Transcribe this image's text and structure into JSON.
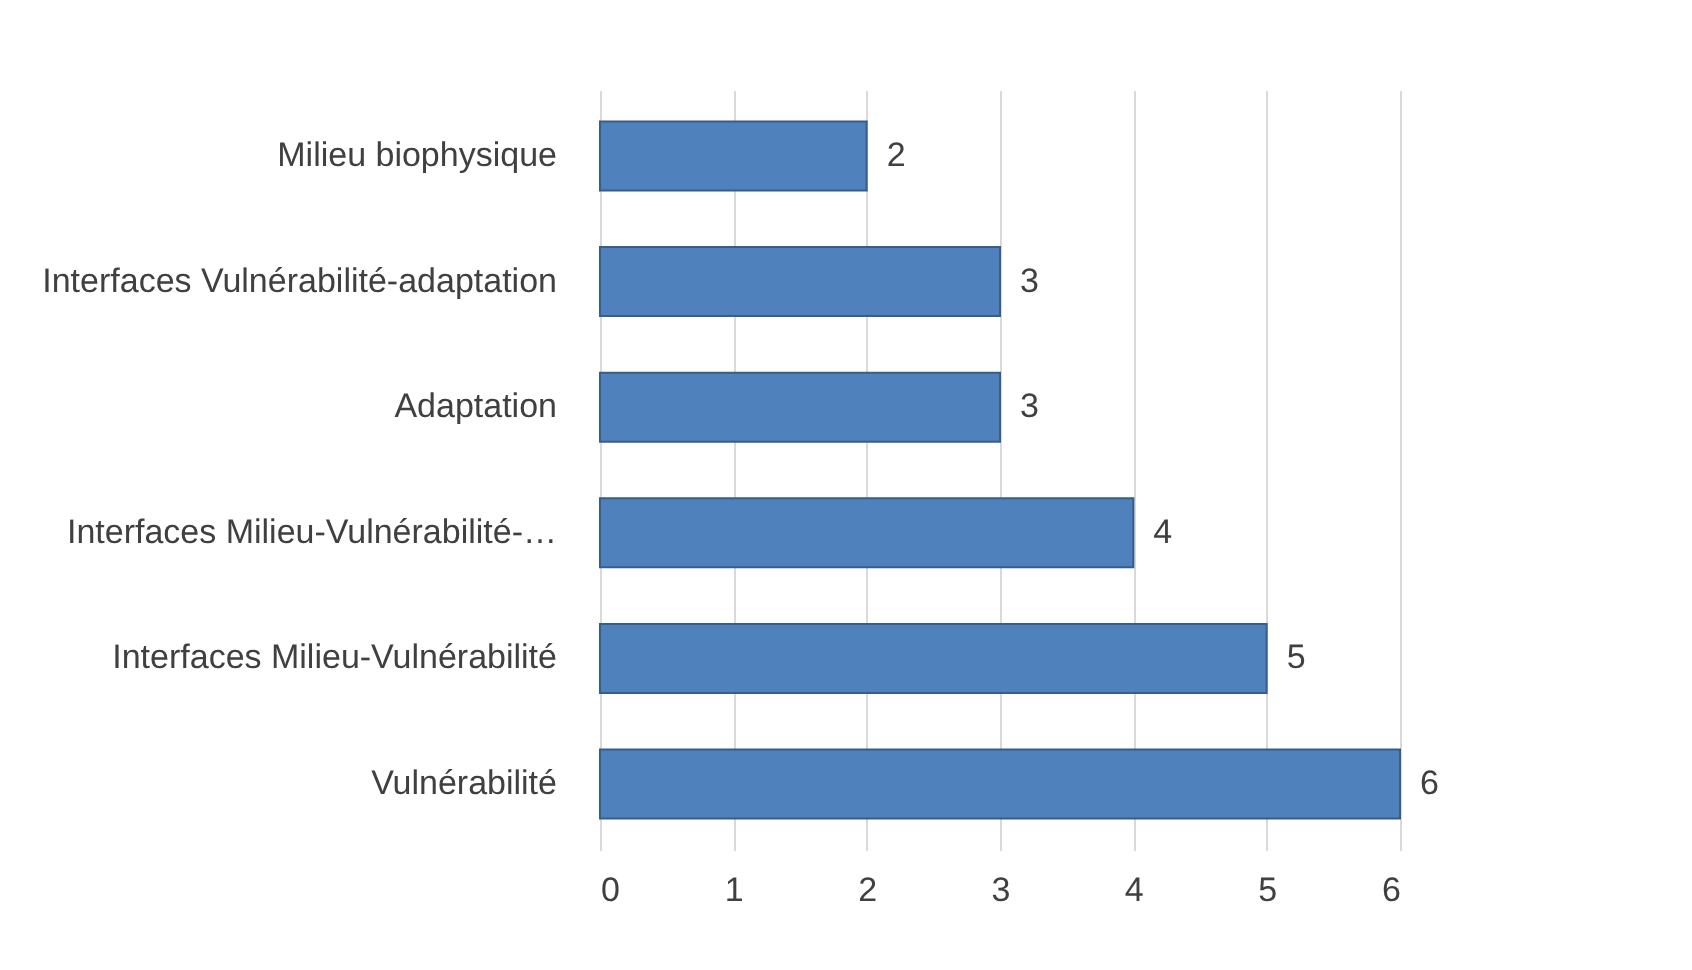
{
  "chart_data": {
    "type": "bar",
    "orientation": "horizontal",
    "categories": [
      "Milieu biophysique",
      "Interfaces Vulnérabilité-adaptation",
      "Adaptation",
      "Interfaces Milieu-Vulnérabilité-…",
      "Interfaces Milieu-Vulnérabilité",
      "Vulnérabilité"
    ],
    "values": [
      2,
      3,
      3,
      4,
      5,
      6
    ],
    "color": "#4f81bd",
    "xlim": [
      0,
      6
    ],
    "xticks": [
      0,
      1,
      2,
      3,
      4,
      5,
      6
    ],
    "grid": "x",
    "data_labels": true
  }
}
